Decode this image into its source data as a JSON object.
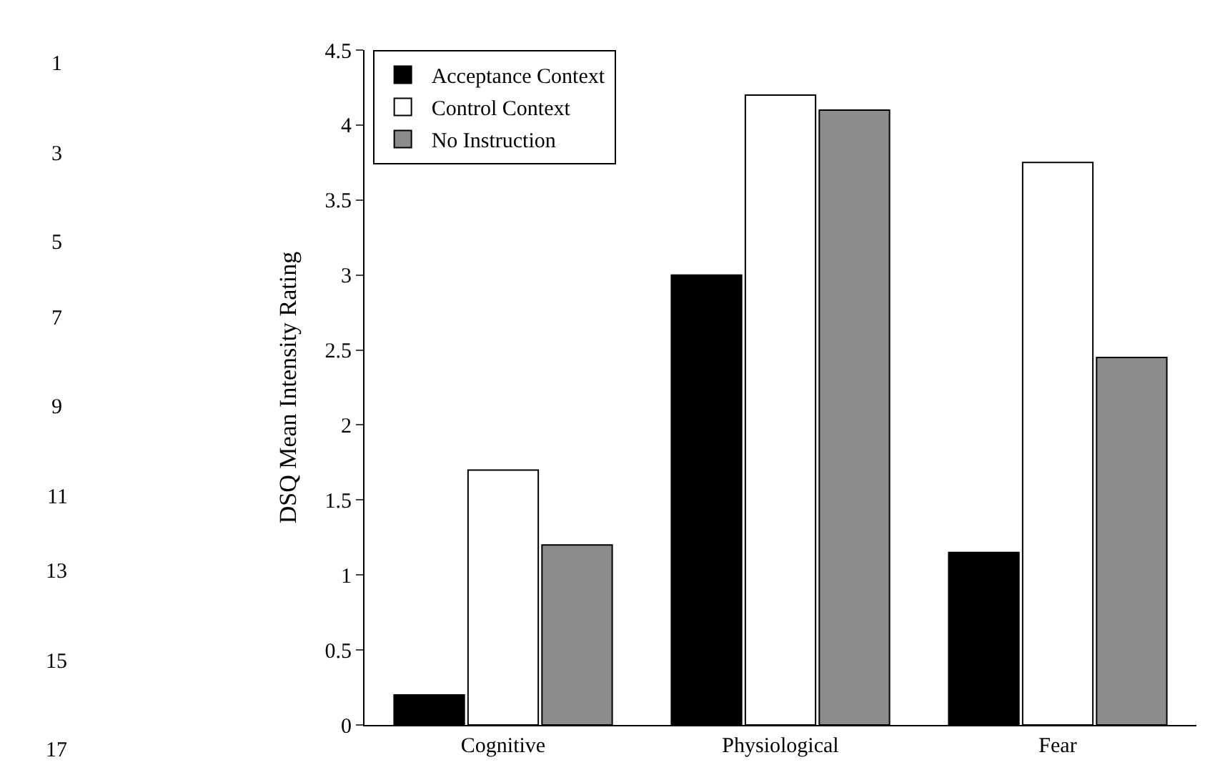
{
  "chart_data": {
    "type": "bar",
    "ylabel": "DSQ Mean Intensity Rating",
    "categories": [
      "Cognitive",
      "Physiological",
      "Fear"
    ],
    "series": [
      {
        "name": "Acceptance Context",
        "color": "#000000",
        "values": [
          0.2,
          3.0,
          1.15
        ]
      },
      {
        "name": "Control Context",
        "color": "#ffffff",
        "values": [
          1.7,
          4.2,
          3.75
        ]
      },
      {
        "name": "No Instruction",
        "color": "#8c8c8c",
        "values": [
          1.2,
          4.1,
          2.45
        ]
      }
    ],
    "ylim": [
      0,
      4.5
    ],
    "yticks": [
      0,
      0.5,
      1,
      1.5,
      2,
      2.5,
      3,
      3.5,
      4,
      4.5
    ],
    "legend": "top left",
    "annotations": [
      "1",
      "3",
      "5",
      "7",
      "9",
      "11",
      "13",
      "15",
      "17"
    ]
  }
}
